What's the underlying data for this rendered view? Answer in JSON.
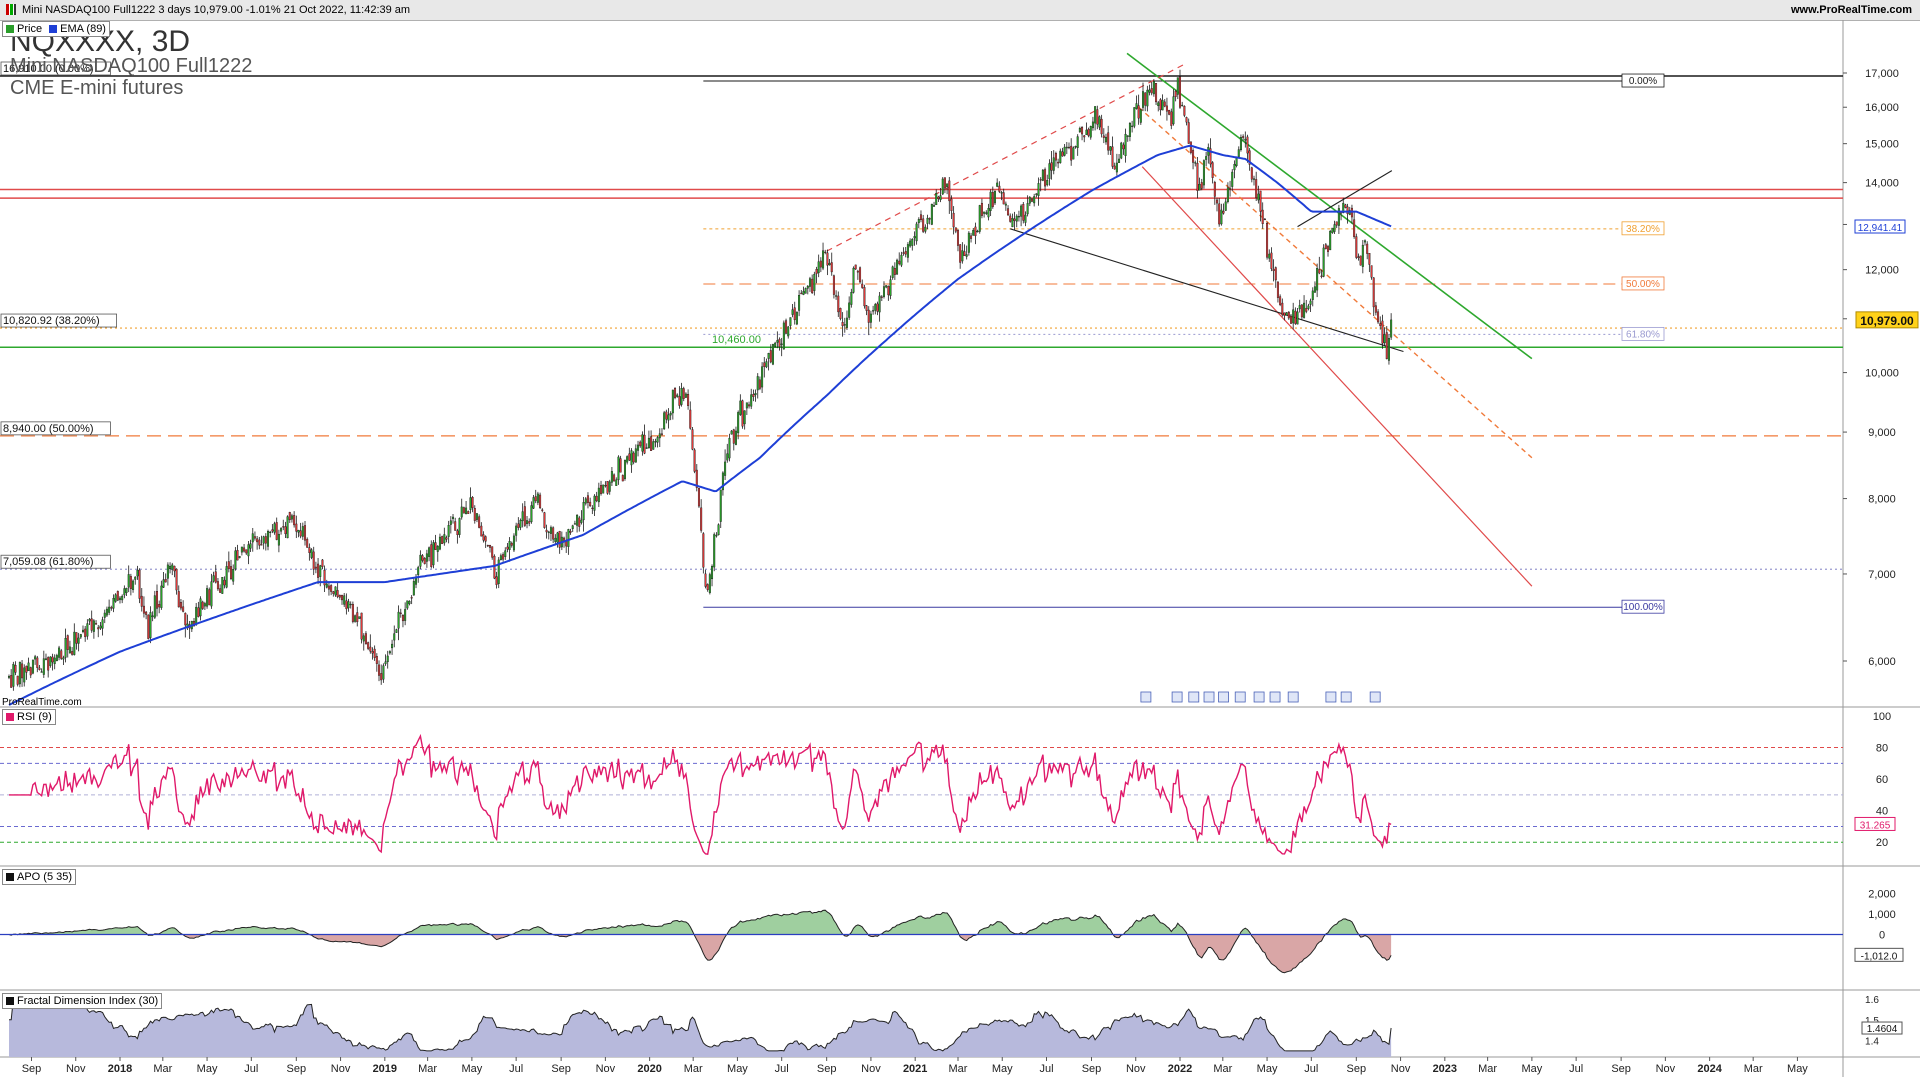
{
  "header": {
    "title": "Mini NASDAQ100 Full1222 3 days 10,979.00 -1.01% 21 Oct 2022, 11:42:39 am",
    "site": "www.ProRealTime.com"
  },
  "instrument": {
    "symbol": "NQXXXX, 3D",
    "name": "Mini NASDAQ100 Full1222",
    "exchange": "CME E-mini futures"
  },
  "footer_site": "ProRealTime.com",
  "colors": {
    "candle_up": "#1a1a1a",
    "ema": "#1e3fd6",
    "rsi": "#e0196a",
    "apo_pos": "#9fcf9f",
    "apo_neg": "#d9a6a6",
    "fdi_fill": "#b7b9dc",
    "green_line": "#2ea82e",
    "red_line": "#e04a4a",
    "orange_line": "#f07a3a"
  },
  "chart_data": [
    {
      "type": "candlestick",
      "title": "NQXXXX, 3D",
      "legend": [
        {
          "name": "Price",
          "color": "#2a9d2a"
        },
        {
          "name": "EMA (89)",
          "color": "#1e3fd6"
        }
      ],
      "ylim": [
        5400,
        17600
      ],
      "y_ticks": [
        "6,000",
        "7,000",
        "8,000",
        "9,000",
        "10,000",
        "11,000",
        "12,000",
        "13,000",
        "14,000",
        "15,000",
        "16,000",
        "17,000"
      ],
      "y_tick_values": [
        6000,
        7000,
        8000,
        9000,
        10000,
        11000,
        12000,
        13000,
        14000,
        15000,
        16000,
        17000
      ],
      "x_labels": [
        "Sep",
        "Nov",
        "2018",
        "Mar",
        "May",
        "Jul",
        "Sep",
        "Nov",
        "2019",
        "Mar",
        "May",
        "Jul",
        "Sep",
        "Nov",
        "2020",
        "Mar",
        "May",
        "Jul",
        "Sep",
        "Nov",
        "2021",
        "Mar",
        "May",
        "Jul",
        "Sep",
        "Nov",
        "2022",
        "Mar",
        "May",
        "Jul",
        "Sep",
        "Nov",
        "2023",
        "Mar",
        "May",
        "Jul",
        "Sep",
        "Nov",
        "2024",
        "Mar",
        "May"
      ],
      "x_label_dates": [
        "2017-09",
        "2017-11",
        "2018-01",
        "2018-03",
        "2018-05",
        "2018-07",
        "2018-09",
        "2018-11",
        "2019-01",
        "2019-03",
        "2019-05",
        "2019-07",
        "2019-09",
        "2019-11",
        "2020-01",
        "2020-03",
        "2020-05",
        "2020-07",
        "2020-09",
        "2020-11",
        "2021-01",
        "2021-03",
        "2021-05",
        "2021-07",
        "2021-09",
        "2021-11",
        "2022-01",
        "2022-03",
        "2022-05",
        "2022-07",
        "2022-09",
        "2022-11",
        "2023-01",
        "2023-03",
        "2023-05",
        "2023-07",
        "2023-09",
        "2023-11",
        "2024-01",
        "2024-03",
        "2024-05"
      ],
      "price_path": [
        [
          "2017-08-01",
          5850
        ],
        [
          "2017-10-01",
          6000
        ],
        [
          "2017-12-01",
          6400
        ],
        [
          "2018-01-25",
          7000
        ],
        [
          "2018-02-09",
          6300
        ],
        [
          "2018-03-12",
          7100
        ],
        [
          "2018-04-05",
          6400
        ],
        [
          "2018-06-20",
          7300
        ],
        [
          "2018-08-29",
          7700
        ],
        [
          "2018-10-10",
          6900
        ],
        [
          "2018-11-20",
          6500
        ],
        [
          "2018-12-26",
          5850
        ],
        [
          "2019-02-15",
          7000
        ],
        [
          "2019-04-30",
          7900
        ],
        [
          "2019-06-03",
          7000
        ],
        [
          "2019-07-26",
          8000
        ],
        [
          "2019-08-26",
          7350
        ],
        [
          "2019-10-15",
          8000
        ],
        [
          "2020-01-10",
          8950
        ],
        [
          "2020-02-19",
          9800
        ],
        [
          "2020-03-20",
          6650
        ],
        [
          "2020-04-20",
          8900
        ],
        [
          "2020-06-10",
          10100
        ],
        [
          "2020-09-02",
          12400
        ],
        [
          "2020-09-24",
          10800
        ],
        [
          "2020-10-12",
          12000
        ],
        [
          "2020-10-30",
          11000
        ],
        [
          "2021-02-12",
          13900
        ],
        [
          "2021-03-05",
          12300
        ],
        [
          "2021-04-28",
          14000
        ],
        [
          "2021-05-12",
          12900
        ],
        [
          "2021-09-07",
          15700
        ],
        [
          "2021-10-04",
          14400
        ],
        [
          "2021-11-19",
          16700
        ],
        [
          "2021-12-20",
          15500
        ],
        [
          "2021-12-28",
          16600
        ],
        [
          "2022-01-27",
          13700
        ],
        [
          "2022-02-09",
          14900
        ],
        [
          "2022-02-24",
          13000
        ],
        [
          "2022-03-29",
          15300
        ],
        [
          "2022-05-12",
          11600
        ],
        [
          "2022-05-24",
          11100
        ],
        [
          "2022-06-16",
          11100
        ],
        [
          "2022-07-01",
          11500
        ],
        [
          "2022-08-16",
          13700
        ],
        [
          "2022-09-06",
          11900
        ],
        [
          "2022-09-12",
          12700
        ],
        [
          "2022-09-30",
          10900
        ],
        [
          "2022-10-13",
          10500
        ],
        [
          "2022-10-21",
          10979
        ]
      ],
      "ema_path": [
        [
          "2017-08-01",
          5550
        ],
        [
          "2018-01-01",
          6100
        ],
        [
          "2018-10-01",
          6900
        ],
        [
          "2019-01-01",
          6900
        ],
        [
          "2019-06-01",
          7100
        ],
        [
          "2019-10-01",
          7500
        ],
        [
          "2020-02-15",
          8250
        ],
        [
          "2020-04-01",
          8100
        ],
        [
          "2020-06-01",
          8600
        ],
        [
          "2020-09-01",
          9600
        ],
        [
          "2020-12-01",
          10700
        ],
        [
          "2021-03-01",
          11800
        ],
        [
          "2021-06-01",
          12800
        ],
        [
          "2021-09-01",
          13800
        ],
        [
          "2021-12-01",
          14700
        ],
        [
          "2022-01-15",
          14950
        ],
        [
          "2022-03-01",
          14700
        ],
        [
          "2022-04-01",
          14600
        ],
        [
          "2022-05-15",
          14000
        ],
        [
          "2022-07-01",
          13300
        ],
        [
          "2022-09-01",
          13300
        ],
        [
          "2022-10-21",
          12941.41
        ]
      ],
      "horizontal_levels": [
        {
          "value": 16910,
          "label": "16,910.00 (0.00%)",
          "style": "solid",
          "color": "#1a1a1a"
        },
        {
          "value": 13830,
          "label": "",
          "style": "solid",
          "color": "#e04a4a"
        },
        {
          "value": 13620,
          "label": "",
          "style": "solid",
          "color": "#e04a4a"
        },
        {
          "value": 10820.92,
          "label": "10,820.92 (38.20%)",
          "style": "dotted",
          "color": "#f0a030"
        },
        {
          "value": 10460,
          "label": "10,460.00",
          "style": "solid",
          "color": "#2ea82e"
        },
        {
          "value": 8940,
          "label": "8,940.00 (50.00%)",
          "style": "dashed",
          "color": "#f07a3a"
        },
        {
          "value": 7059.08,
          "label": "7,059.08 (61.80%)",
          "style": "dotted",
          "color": "#9a9ad0"
        }
      ],
      "fib_retracement": [
        {
          "value": 16760,
          "label": "0.00%",
          "color": "#1a1a1a"
        },
        {
          "value": 12900,
          "label": "38.20%",
          "color": "#f0a030"
        },
        {
          "value": 11700,
          "label": "50.00%",
          "color": "#f07a3a"
        },
        {
          "value": 10700,
          "label": "61.80%",
          "color": "#9a9ad0"
        },
        {
          "value": 6600,
          "label": "100.00%",
          "color": "#3a3aa0"
        }
      ],
      "last_price": "10,979.00",
      "ema_value": "12,941.41"
    },
    {
      "type": "line",
      "title": "RSI (9)",
      "ylim": [
        10,
        100
      ],
      "y_ticks": [
        "100",
        "80",
        "60",
        "40",
        "20"
      ],
      "y_tick_values": [
        100,
        80,
        60,
        40,
        20
      ],
      "levels": [
        80,
        70,
        50,
        30,
        20
      ],
      "last_value": "31.265",
      "last_value_num": 31.265
    },
    {
      "type": "area",
      "title": "APO (5 35)",
      "ylim": [
        -2500,
        2500
      ],
      "y_ticks": [
        "2,000",
        "1,000",
        "0",
        "-1,012.0"
      ],
      "y_tick_values": [
        2000,
        1000,
        0,
        -1012
      ],
      "last_value": "-1,012.0",
      "last_value_num": -1012
    },
    {
      "type": "area",
      "title": "Fractal Dimension Index (30)",
      "ylim": [
        1.33,
        1.62
      ],
      "y_ticks": [
        "1.6",
        "1.5",
        "1.4"
      ],
      "y_tick_values": [
        1.6,
        1.5,
        1.4
      ],
      "last_value": "1.4604",
      "last_value_num": 1.4604
    }
  ]
}
